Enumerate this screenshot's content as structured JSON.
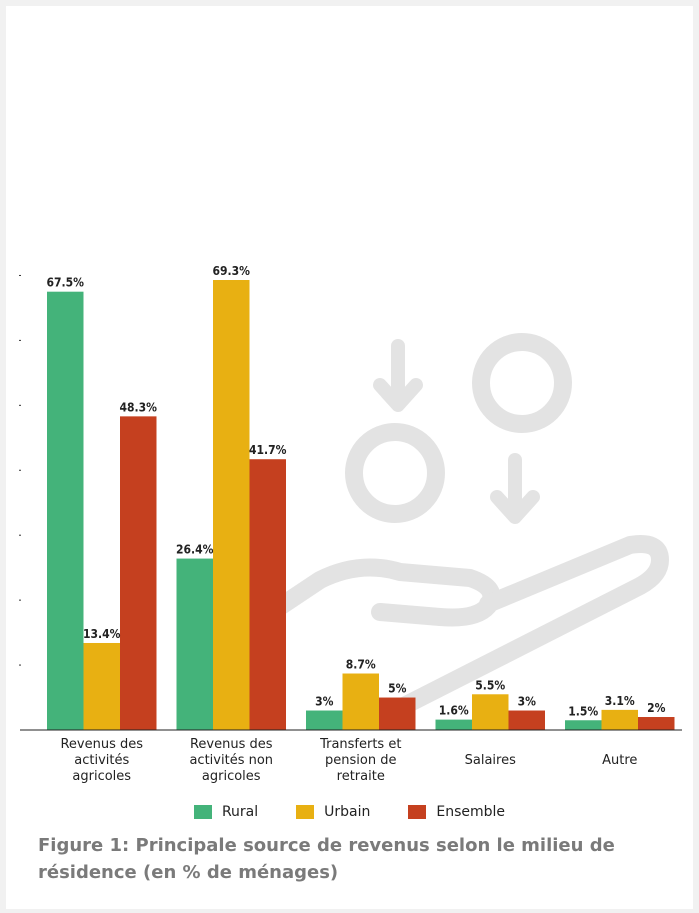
{
  "caption": "Figure 1: Principale source de revenus selon le milieu de résidence (en % de ménages)",
  "colors": {
    "rural": "#44b37a",
    "urbain": "#e8b012",
    "ensemble": "#c5401f",
    "watermark": "#e3e3e3"
  },
  "watermark_icon": "hand-coins-icon",
  "chart_data": {
    "type": "bar",
    "title": "",
    "xlabel": "",
    "ylabel": "",
    "ylim": [
      0,
      70
    ],
    "grid": false,
    "legend_position": "bottom",
    "categories": [
      [
        "Revenus des",
        "activités",
        "agricoles"
      ],
      [
        "Revenus des",
        "activités non",
        "agricoles"
      ],
      [
        "Transferts et",
        "pension de",
        "retraite"
      ],
      [
        "Salaires"
      ],
      [
        "Autre"
      ]
    ],
    "series": [
      {
        "name": "Rural",
        "values": [
          67.5,
          26.4,
          3,
          1.6,
          1.5
        ],
        "labels": [
          "67.5%",
          "26.4%",
          "3%",
          "1.6%",
          "1.5%"
        ]
      },
      {
        "name": "Urbain",
        "values": [
          13.4,
          69.3,
          8.7,
          5.5,
          3.1
        ],
        "labels": [
          "13.4%",
          "69.3%",
          "8.7%",
          "5.5%",
          "3.1%"
        ]
      },
      {
        "name": "Ensemble",
        "values": [
          48.3,
          41.7,
          5,
          3,
          2
        ],
        "labels": [
          "48.3%",
          "41.7%",
          "5%",
          "3%",
          "2%"
        ]
      }
    ]
  }
}
